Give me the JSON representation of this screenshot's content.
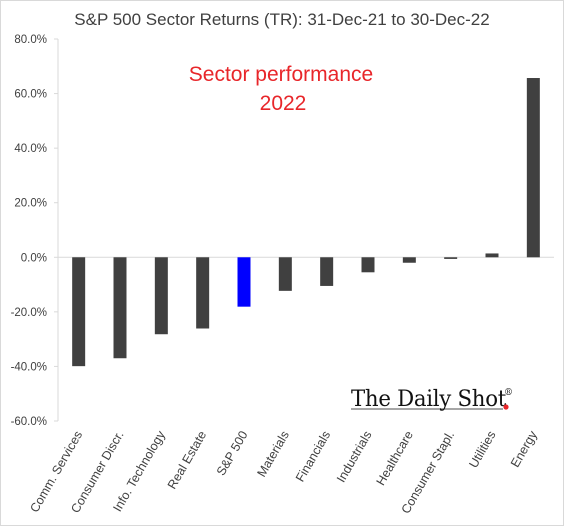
{
  "chart_data": {
    "type": "bar",
    "title": "S&P 500 Sector Returns (TR): 31-Dec-21 to 30-Dec-22",
    "annotation": [
      "Sector performance",
      "2022"
    ],
    "watermark": "The Daily Shot",
    "watermark_mark": "®",
    "xlabel": "",
    "ylabel": "",
    "categories": [
      "Comm. Services",
      "Consumer Discr.",
      "Info. Technology",
      "Real Estate",
      "S&P 500",
      "Materials",
      "Financials",
      "Industrials",
      "Healthcare",
      "Consumer Stapl.",
      "Utilities",
      "Energy"
    ],
    "values": [
      -39.9,
      -37.0,
      -28.2,
      -26.1,
      -18.1,
      -12.3,
      -10.5,
      -5.5,
      -2.0,
      -0.6,
      1.4,
      65.7
    ],
    "ylim": [
      -60,
      80
    ],
    "yticks": [
      -60,
      -40,
      -20,
      0,
      20,
      40,
      60,
      80
    ],
    "ytick_labels": [
      "-60.0%",
      "-40.0%",
      "-20.0%",
      "0.0%",
      "20.0%",
      "40.0%",
      "60.0%",
      "80.0%"
    ],
    "colors": {
      "bar": "#404040",
      "highlight": "#0000ff",
      "highlight_category": "S&P 500",
      "annotation": "#e8262a",
      "axis": "#d9d9d9",
      "dot": "#e8262a"
    },
    "grid": false,
    "legend": "none"
  }
}
